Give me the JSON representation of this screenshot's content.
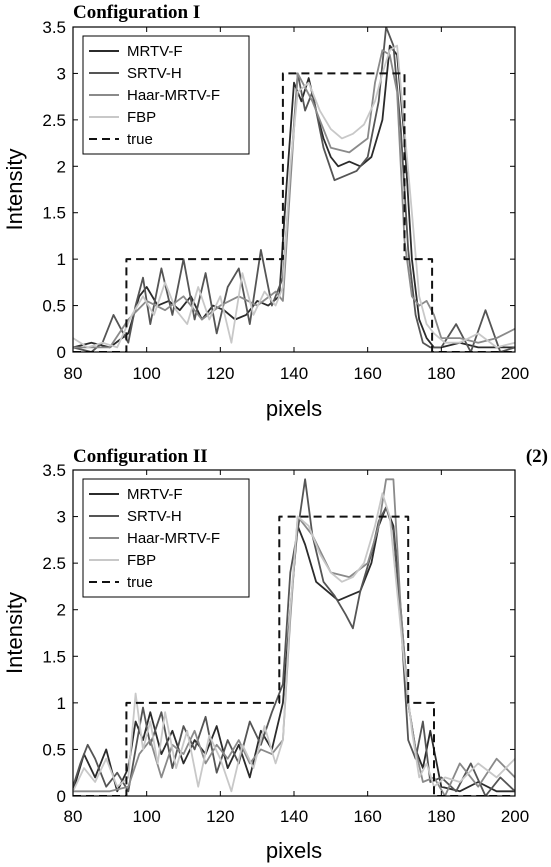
{
  "chart_data": [
    {
      "type": "line",
      "title": "Configuration I",
      "panel_tag": "",
      "xlabel": "pixels",
      "ylabel": "Intensity",
      "xlim": [
        80,
        200
      ],
      "ylim": [
        0,
        3.5
      ],
      "xticks": [
        80,
        100,
        120,
        140,
        160,
        180,
        200
      ],
      "xtick_labels": [
        "80",
        "100",
        "120",
        "140",
        "160",
        "180",
        "200"
      ],
      "yticks": [
        0,
        0.5,
        1,
        1.5,
        2,
        2.5,
        3,
        3.5
      ],
      "ytick_labels": [
        "0",
        "0.5",
        "1",
        "1.5",
        "2",
        "2.5",
        "3",
        "3.5"
      ],
      "legend_position": "top-left",
      "series": [
        {
          "name": "MRTV-F",
          "color": "#2b2b2b",
          "dash": "",
          "x": [
            80,
            85,
            90,
            95,
            98,
            100,
            103,
            106,
            109,
            112,
            115,
            118,
            121,
            124,
            127,
            130,
            133,
            136,
            138,
            140,
            142,
            144,
            146,
            148,
            150,
            152,
            155,
            158,
            161,
            164,
            166,
            168,
            170,
            172,
            174,
            176,
            178,
            180,
            185,
            190,
            195,
            200
          ],
          "y": [
            0.05,
            0.1,
            0.05,
            0.2,
            0.6,
            0.7,
            0.5,
            0.55,
            0.45,
            0.6,
            0.35,
            0.5,
            0.45,
            0.35,
            0.4,
            0.55,
            0.5,
            0.6,
            1.8,
            2.9,
            2.7,
            2.95,
            2.6,
            2.3,
            2.1,
            2.0,
            2.05,
            2.0,
            2.1,
            2.5,
            3.3,
            3.2,
            2.3,
            1.0,
            0.35,
            0.15,
            0.05,
            0.05,
            0.1,
            0.05,
            0.05,
            0.05
          ]
        },
        {
          "name": "SRTV-H",
          "color": "#555555",
          "dash": "",
          "x": [
            80,
            85,
            88,
            91,
            95,
            97,
            99,
            101,
            104,
            107,
            110,
            113,
            116,
            119,
            122,
            125,
            128,
            131,
            134,
            137,
            139,
            141,
            143,
            145,
            148,
            151,
            154,
            157,
            160,
            163,
            165,
            167,
            169,
            171,
            173,
            175,
            177,
            180,
            184,
            188,
            192,
            196,
            200
          ],
          "y": [
            0.05,
            0.0,
            0.1,
            0.4,
            0.1,
            0.5,
            0.8,
            0.3,
            0.9,
            0.4,
            1.0,
            0.35,
            0.85,
            0.2,
            0.7,
            0.9,
            0.3,
            1.1,
            0.5,
            0.8,
            1.9,
            3.0,
            2.6,
            2.8,
            2.2,
            1.85,
            1.9,
            1.95,
            2.1,
            2.7,
            3.5,
            3.3,
            2.4,
            1.1,
            0.4,
            0.1,
            0.05,
            0.05,
            0.3,
            0.0,
            0.45,
            0.0,
            0.05
          ]
        },
        {
          "name": "Haar-MRTV-F",
          "color": "#8a8a8a",
          "dash": "",
          "x": [
            80,
            90,
            95,
            100,
            105,
            110,
            115,
            120,
            125,
            130,
            135,
            137,
            139,
            141,
            145,
            150,
            155,
            160,
            162,
            164,
            166,
            168,
            170,
            172,
            174,
            176,
            178,
            180,
            185,
            190,
            195,
            200
          ],
          "y": [
            0.05,
            0.05,
            0.35,
            0.55,
            0.45,
            0.6,
            0.35,
            0.5,
            0.6,
            0.5,
            0.65,
            0.55,
            1.8,
            3.0,
            2.7,
            2.2,
            2.15,
            2.3,
            2.9,
            3.25,
            3.2,
            2.8,
            1.2,
            0.6,
            0.5,
            0.55,
            0.4,
            0.15,
            0.15,
            0.1,
            0.15,
            0.25
          ]
        },
        {
          "name": "FBP",
          "color": "#c8c8c8",
          "dash": "",
          "x": [
            80,
            84,
            88,
            92,
            96,
            99,
            102,
            105,
            108,
            111,
            114,
            117,
            120,
            123,
            126,
            129,
            132,
            135,
            137,
            139,
            141,
            144,
            147,
            150,
            153,
            156,
            159,
            162,
            164,
            166,
            168,
            170,
            172,
            174,
            176,
            178,
            181,
            185,
            190,
            195,
            200
          ],
          "y": [
            0.15,
            0.05,
            0.1,
            0.05,
            0.4,
            0.6,
            0.4,
            0.75,
            0.45,
            0.3,
            0.7,
            0.35,
            0.6,
            0.1,
            0.85,
            0.4,
            0.65,
            0.5,
            0.7,
            2.0,
            2.8,
            2.9,
            2.6,
            2.4,
            2.3,
            2.35,
            2.45,
            2.7,
            3.0,
            3.25,
            3.3,
            2.4,
            1.5,
            0.6,
            0.3,
            0.2,
            0.1,
            0.1,
            0.2,
            0.05,
            0.1
          ]
        },
        {
          "name": "true",
          "color": "#111111",
          "dash": "8,5",
          "x": [
            80,
            94.5,
            94.5,
            137,
            137,
            170,
            170,
            177.5,
            177.5,
            200
          ],
          "y": [
            0,
            0,
            1,
            1,
            3,
            3,
            1,
            1,
            0,
            0
          ]
        }
      ]
    },
    {
      "type": "line",
      "title": "Configuration II",
      "panel_tag": "(2)",
      "xlabel": "pixels",
      "ylabel": "Intensity",
      "xlim": [
        80,
        200
      ],
      "ylim": [
        0,
        3.5
      ],
      "xticks": [
        80,
        100,
        120,
        140,
        160,
        180,
        200
      ],
      "xtick_labels": [
        "80",
        "100",
        "120",
        "140",
        "160",
        "180",
        "200"
      ],
      "yticks": [
        0,
        0.5,
        1,
        1.5,
        2,
        2.5,
        3,
        3.5
      ],
      "ytick_labels": [
        "0",
        "0.5",
        "1",
        "1.5",
        "2",
        "2.5",
        "3",
        "3.5"
      ],
      "legend_position": "top-left",
      "series": [
        {
          "name": "MRTV-F",
          "color": "#2b2b2b",
          "dash": "",
          "x": [
            80,
            83,
            86,
            89,
            92,
            95,
            97,
            99,
            101,
            104,
            107,
            110,
            113,
            116,
            119,
            122,
            125,
            128,
            131,
            134,
            137,
            139,
            141,
            143,
            146,
            149,
            152,
            155,
            158,
            161,
            163,
            165,
            167,
            169,
            171,
            173,
            175,
            177,
            180,
            185,
            190,
            195,
            200
          ],
          "y": [
            0.05,
            0.45,
            0.2,
            0.5,
            0.05,
            0.3,
            0.8,
            0.6,
            0.9,
            0.45,
            0.7,
            0.35,
            0.6,
            0.45,
            0.75,
            0.3,
            0.55,
            0.2,
            0.7,
            0.5,
            1.0,
            2.0,
            2.9,
            2.7,
            2.3,
            2.2,
            2.1,
            2.15,
            2.2,
            2.5,
            2.9,
            3.1,
            2.9,
            2.0,
            1.0,
            0.5,
            0.3,
            0.7,
            0.1,
            0.05,
            0.15,
            0.05,
            0.05
          ]
        },
        {
          "name": "SRTV-H",
          "color": "#555555",
          "dash": "",
          "x": [
            80,
            82,
            84,
            86,
            89,
            92,
            95,
            97,
            99,
            101,
            104,
            107,
            110,
            113,
            116,
            119,
            122,
            125,
            128,
            131,
            134,
            137,
            139,
            141,
            143,
            145,
            148,
            151,
            154,
            156,
            158,
            161,
            163,
            165,
            167,
            169,
            171,
            173,
            175,
            177,
            180,
            184,
            188,
            192,
            196,
            200
          ],
          "y": [
            0.1,
            0.35,
            0.55,
            0.4,
            0.1,
            0.25,
            0.05,
            0.5,
            0.95,
            0.55,
            0.9,
            0.3,
            0.75,
            0.5,
            0.85,
            0.25,
            0.6,
            0.35,
            0.8,
            0.55,
            0.9,
            1.2,
            2.4,
            2.85,
            3.4,
            2.8,
            2.3,
            2.15,
            1.95,
            1.8,
            2.2,
            2.6,
            2.95,
            3.1,
            2.85,
            1.9,
            0.6,
            0.4,
            0.8,
            0.15,
            0.2,
            0.05,
            0.35,
            0.0,
            0.2,
            0.05
          ]
        },
        {
          "name": "Haar-MRTV-F",
          "color": "#8a8a8a",
          "dash": "",
          "x": [
            80,
            90,
            95,
            98,
            101,
            104,
            107,
            110,
            113,
            116,
            119,
            122,
            125,
            128,
            131,
            134,
            137,
            139,
            141,
            145,
            150,
            155,
            160,
            163,
            165,
            167,
            169,
            171,
            173,
            175,
            178,
            181,
            185,
            190,
            195,
            200
          ],
          "y": [
            0.05,
            0.05,
            0.1,
            0.45,
            0.6,
            0.2,
            0.55,
            0.45,
            0.7,
            0.35,
            0.55,
            0.4,
            0.6,
            0.35,
            0.5,
            0.45,
            0.6,
            1.9,
            3.0,
            2.8,
            2.4,
            2.35,
            2.5,
            2.9,
            3.4,
            3.4,
            2.0,
            1.0,
            0.5,
            0.15,
            0.2,
            0.0,
            0.35,
            0.1,
            0.4,
            0.2
          ]
        },
        {
          "name": "FBP",
          "color": "#c8c8c8",
          "dash": "",
          "x": [
            80,
            83,
            86,
            89,
            92,
            95,
            97,
            99,
            101,
            103,
            105,
            108,
            111,
            114,
            117,
            120,
            123,
            126,
            129,
            132,
            135,
            137,
            139,
            141,
            144,
            147,
            150,
            153,
            156,
            159,
            162,
            164,
            166,
            168,
            170,
            172,
            174,
            176,
            178,
            181,
            185,
            190,
            195,
            200
          ],
          "y": [
            0.05,
            0.3,
            0.15,
            0.4,
            0.1,
            0.2,
            1.1,
            0.5,
            0.8,
            0.35,
            0.9,
            0.3,
            0.7,
            0.1,
            0.65,
            0.4,
            0.05,
            0.55,
            0.3,
            0.75,
            0.35,
            0.6,
            2.0,
            3.0,
            2.9,
            2.6,
            2.4,
            2.3,
            2.35,
            2.5,
            2.9,
            3.25,
            3.0,
            2.2,
            1.4,
            0.7,
            0.2,
            0.35,
            0.1,
            0.2,
            0.15,
            0.35,
            0.2,
            0.4
          ]
        },
        {
          "name": "true",
          "color": "#111111",
          "dash": "8,5",
          "x": [
            80,
            94.5,
            94.5,
            136,
            136,
            171,
            171,
            178,
            178,
            200
          ],
          "y": [
            0,
            0,
            1,
            1,
            3,
            3,
            1,
            1,
            0,
            0
          ]
        }
      ]
    }
  ]
}
